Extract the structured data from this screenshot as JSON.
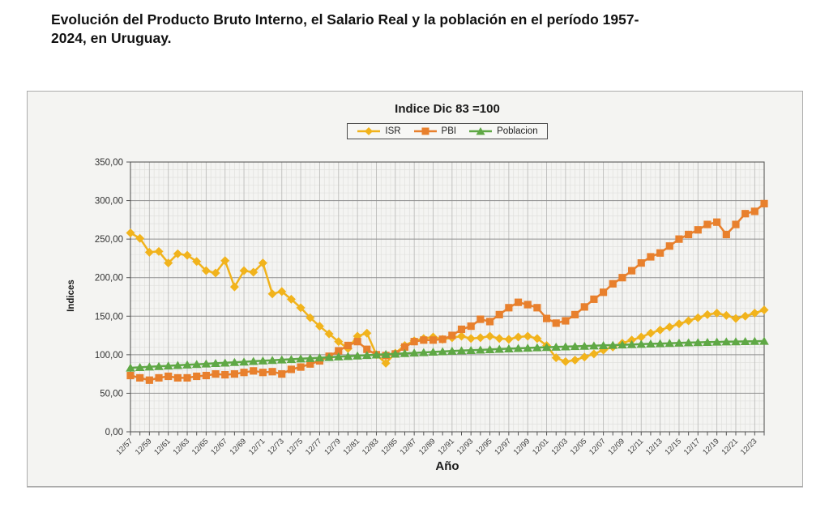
{
  "page": {
    "heading_line1": "Evolución del Producto Bruto Interno, el Salario Real y la población en el período 1957-",
    "heading_line2": "2024, en Uruguay."
  },
  "chart_data": {
    "type": "line",
    "title": "Indice Dic 83 =100",
    "xlabel": "Año",
    "ylabel": "Indices",
    "ylim": [
      0,
      350
    ],
    "grid": true,
    "legend_position": "top",
    "label_every": 2,
    "y_ticks": [
      {
        "value": 0,
        "label": "0,00"
      },
      {
        "value": 50,
        "label": "50,00"
      },
      {
        "value": 100,
        "label": "100,00"
      },
      {
        "value": 150,
        "label": "150,00"
      },
      {
        "value": 200,
        "label": "200,00"
      },
      {
        "value": 250,
        "label": "250,00"
      },
      {
        "value": 300,
        "label": "300,00"
      },
      {
        "value": 350,
        "label": "350,00"
      }
    ],
    "x": [
      "12/57",
      "12/58",
      "12/59",
      "12/60",
      "12/61",
      "12/62",
      "12/63",
      "12/64",
      "12/65",
      "12/66",
      "12/67",
      "12/68",
      "12/69",
      "12/70",
      "12/71",
      "12/72",
      "12/73",
      "12/74",
      "12/75",
      "12/76",
      "12/77",
      "12/78",
      "12/79",
      "12/80",
      "12/81",
      "12/82",
      "12/83",
      "12/84",
      "12/85",
      "12/86",
      "12/87",
      "12/88",
      "12/89",
      "12/90",
      "12/91",
      "12/92",
      "12/93",
      "12/94",
      "12/95",
      "12/96",
      "12/97",
      "12/98",
      "12/99",
      "12/00",
      "12/01",
      "12/02",
      "12/03",
      "12/04",
      "12/05",
      "12/06",
      "12/07",
      "12/08",
      "12/09",
      "12/10",
      "12/11",
      "12/12",
      "12/13",
      "12/14",
      "12/15",
      "12/16",
      "12/17",
      "12/18",
      "12/19",
      "12/20",
      "12/21",
      "12/22",
      "12/23",
      "12/24"
    ],
    "series": [
      {
        "name": "ISR",
        "color": "#F1B31C",
        "marker": "diamond",
        "values": [
          258,
          251,
          233,
          234,
          219,
          231,
          229,
          221,
          209,
          206,
          222,
          188,
          209,
          207,
          219,
          179,
          182,
          172,
          161,
          148,
          137,
          127,
          117,
          108,
          124,
          128,
          100,
          89,
          102,
          112,
          118,
          121,
          123,
          120,
          122,
          124,
          121,
          122,
          124,
          121,
          120,
          123,
          124,
          121,
          112,
          96,
          91,
          93,
          97,
          101,
          106,
          110,
          115,
          119,
          123,
          128,
          132,
          136,
          140,
          144,
          148,
          152,
          154,
          151,
          147,
          150,
          154,
          158
        ]
      },
      {
        "name": "PBI",
        "color": "#E8802D",
        "marker": "square",
        "values": [
          73,
          70,
          67,
          70,
          72,
          70,
          70,
          72,
          73,
          75,
          74,
          75,
          77,
          79,
          77,
          78,
          75,
          81,
          84,
          88,
          92,
          98,
          105,
          112,
          117,
          107,
          100,
          99,
          101,
          110,
          117,
          119,
          119,
          120,
          125,
          133,
          137,
          146,
          143,
          152,
          161,
          168,
          165,
          161,
          147,
          141,
          144,
          152,
          162,
          172,
          181,
          192,
          200,
          209,
          219,
          227,
          232,
          241,
          250,
          256,
          262,
          269,
          272,
          256,
          269,
          283,
          286,
          296
        ]
      },
      {
        "name": "Poblacion",
        "color": "#5FA845",
        "marker": "triangle",
        "values": [
          83.0,
          83.7,
          84.3,
          85.0,
          85.6,
          86.3,
          86.9,
          87.6,
          88.2,
          88.9,
          89.5,
          90.2,
          90.8,
          91.5,
          92.2,
          92.8,
          93.5,
          94.1,
          94.8,
          95.4,
          96.1,
          96.7,
          97.4,
          98.0,
          98.7,
          99.3,
          100.0,
          100.6,
          101.2,
          101.8,
          102.4,
          103.0,
          103.6,
          104.2,
          104.8,
          105.3,
          105.8,
          106.3,
          106.8,
          107.3,
          107.8,
          108.3,
          108.8,
          109.3,
          109.7,
          110.1,
          110.5,
          110.9,
          111.3,
          111.7,
          112.1,
          112.5,
          112.9,
          113.3,
          113.7,
          114.1,
          114.5,
          114.9,
          115.3,
          115.7,
          116.0,
          116.3,
          116.6,
          116.9,
          117.1,
          117.3,
          117.5,
          117.7
        ]
      }
    ]
  }
}
